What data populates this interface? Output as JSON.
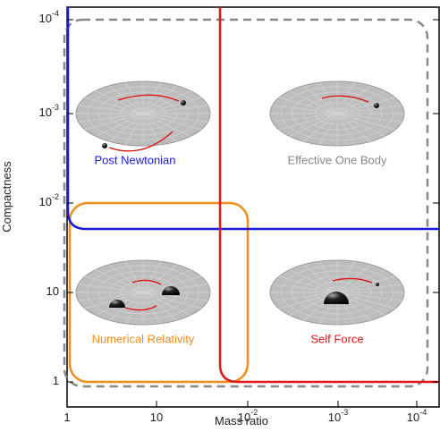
{
  "axes": {
    "y_title": "Compactness",
    "x_title": "Mass ratio",
    "y_ticks": [
      {
        "base": "1"
      },
      {
        "base": "10"
      },
      {
        "base": "10",
        "exp": "-2"
      },
      {
        "base": "10",
        "exp": "-3"
      },
      {
        "base": "10",
        "exp": "-4"
      }
    ],
    "x_ticks": [
      {
        "base": "1"
      },
      {
        "base": "10"
      },
      {
        "base": "10",
        "exp": "-2"
      },
      {
        "base": "10",
        "exp": "-3"
      },
      {
        "base": "10",
        "exp": "-4"
      }
    ]
  },
  "regions": [
    {
      "label": "Post Newtonian",
      "color": "#1a1adb"
    },
    {
      "label": "Effective One Body",
      "color": "#888888"
    },
    {
      "label": "Numerical Relativity",
      "color": "#f28c1c"
    },
    {
      "label": "Self Force",
      "color": "#e01818"
    }
  ]
}
